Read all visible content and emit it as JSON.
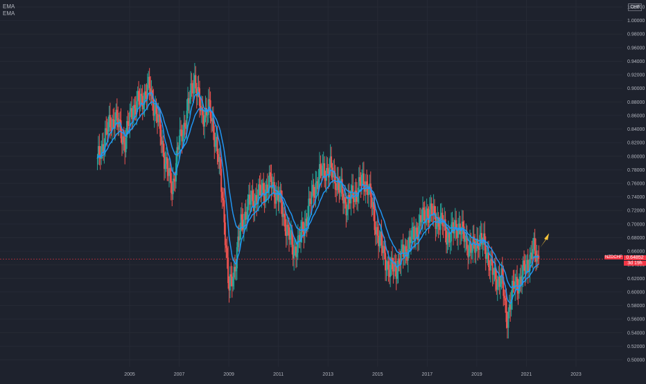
{
  "legend": {
    "line1": "EMA",
    "line2": "EMA"
  },
  "currency": "CHF",
  "symbol": "NZDCHF",
  "last_price": "0.64852",
  "countdown": "3d 19h",
  "colors": {
    "background": "#1e222d",
    "up": "#26a69a",
    "down": "#ef5350",
    "ema": "#2196f3",
    "arrow": "#f7c43a",
    "price_line": "#f23645"
  },
  "chart_data": {
    "type": "candlestick",
    "x_ticks": [
      "2005",
      "2007",
      "2009",
      "2011",
      "2013",
      "2015",
      "2017",
      "2019",
      "2021",
      "2023"
    ],
    "y_ticks": [
      "0.50000",
      "0.52000",
      "0.54000",
      "0.56000",
      "0.58000",
      "0.60000",
      "0.62000",
      "0.64000",
      "0.66000",
      "0.68000",
      "0.70000",
      "0.72000",
      "0.74000",
      "0.76000",
      "0.78000",
      "0.80000",
      "0.82000",
      "0.84000",
      "0.86000",
      "0.88000",
      "0.90000",
      "0.92000",
      "0.94000",
      "0.96000",
      "0.98000",
      "1.00000",
      "1.02000"
    ],
    "ylim": [
      0.49,
      1.03
    ],
    "xlim": [
      2003.4,
      2024.6
    ],
    "last_price": 0.64852,
    "close_anchors": [
      [
        2003.7,
        0.79
      ],
      [
        2004.0,
        0.83
      ],
      [
        2004.4,
        0.86
      ],
      [
        2004.8,
        0.82
      ],
      [
        2005.1,
        0.87
      ],
      [
        2005.4,
        0.88
      ],
      [
        2005.8,
        0.9
      ],
      [
        2006.1,
        0.86
      ],
      [
        2006.4,
        0.8
      ],
      [
        2006.7,
        0.75
      ],
      [
        2007.0,
        0.82
      ],
      [
        2007.3,
        0.86
      ],
      [
        2007.6,
        0.92
      ],
      [
        2007.9,
        0.86
      ],
      [
        2008.2,
        0.87
      ],
      [
        2008.5,
        0.82
      ],
      [
        2008.8,
        0.72
      ],
      [
        2009.0,
        0.6
      ],
      [
        2009.2,
        0.63
      ],
      [
        2009.5,
        0.7
      ],
      [
        2009.8,
        0.73
      ],
      [
        2010.1,
        0.74
      ],
      [
        2010.4,
        0.75
      ],
      [
        2010.7,
        0.76
      ],
      [
        2011.0,
        0.74
      ],
      [
        2011.3,
        0.7
      ],
      [
        2011.6,
        0.66
      ],
      [
        2011.9,
        0.68
      ],
      [
        2012.2,
        0.72
      ],
      [
        2012.5,
        0.76
      ],
      [
        2012.8,
        0.78
      ],
      [
        2013.1,
        0.78
      ],
      [
        2013.4,
        0.76
      ],
      [
        2013.7,
        0.73
      ],
      [
        2014.0,
        0.74
      ],
      [
        2014.3,
        0.76
      ],
      [
        2014.6,
        0.76
      ],
      [
        2014.9,
        0.7
      ],
      [
        2015.2,
        0.66
      ],
      [
        2015.5,
        0.63
      ],
      [
        2015.8,
        0.64
      ],
      [
        2016.1,
        0.66
      ],
      [
        2016.4,
        0.68
      ],
      [
        2016.7,
        0.7
      ],
      [
        2017.0,
        0.72
      ],
      [
        2017.3,
        0.71
      ],
      [
        2017.6,
        0.7
      ],
      [
        2017.9,
        0.68
      ],
      [
        2018.2,
        0.7
      ],
      [
        2018.5,
        0.68
      ],
      [
        2018.8,
        0.66
      ],
      [
        2019.1,
        0.68
      ],
      [
        2019.4,
        0.66
      ],
      [
        2019.7,
        0.62
      ],
      [
        2020.0,
        0.62
      ],
      [
        2020.2,
        0.56
      ],
      [
        2020.5,
        0.61
      ],
      [
        2020.8,
        0.62
      ],
      [
        2021.0,
        0.64
      ],
      [
        2021.3,
        0.66
      ],
      [
        2021.5,
        0.649
      ]
    ]
  }
}
